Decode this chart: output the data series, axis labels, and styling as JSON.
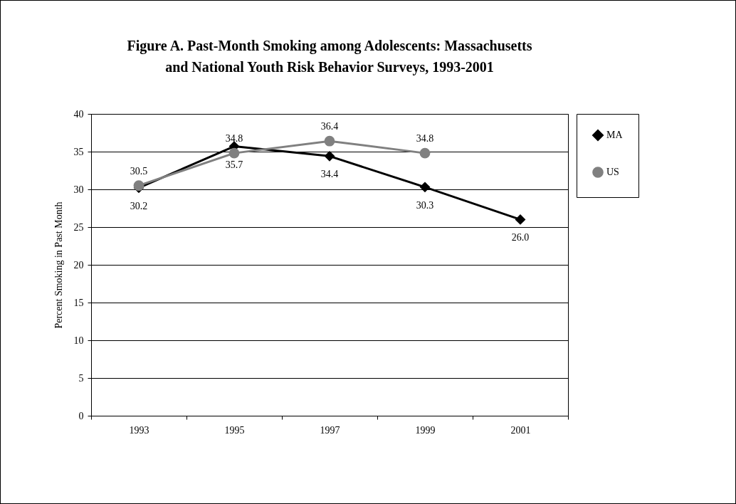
{
  "chart_data": {
    "type": "line",
    "title": "Figure A. Past-Month Smoking among Adolescents: Massachusetts and National Youth Risk Behavior Surveys, 1993-2001",
    "ylabel": "Percent Smoking in Past Month",
    "categories": [
      "1993",
      "1995",
      "1997",
      "1999",
      "2001"
    ],
    "series": [
      {
        "name": "MA",
        "color": "#000000",
        "marker": "diamond",
        "values": [
          30.2,
          35.7,
          34.4,
          30.3,
          26.0
        ],
        "value_labels": [
          "30.2",
          "35.7",
          "34.4",
          "30.3",
          "26.0"
        ]
      },
      {
        "name": "US",
        "color": "#808080",
        "marker": "circle",
        "values": [
          30.5,
          34.8,
          36.4,
          34.8,
          null
        ],
        "value_labels": [
          "30.5",
          "34.8",
          "36.4",
          "34.8",
          null
        ]
      }
    ],
    "ylim": [
      0,
      40
    ],
    "yticks": [
      0,
      5,
      10,
      15,
      20,
      25,
      30,
      35,
      40
    ],
    "grid": "y",
    "legend": "right"
  }
}
